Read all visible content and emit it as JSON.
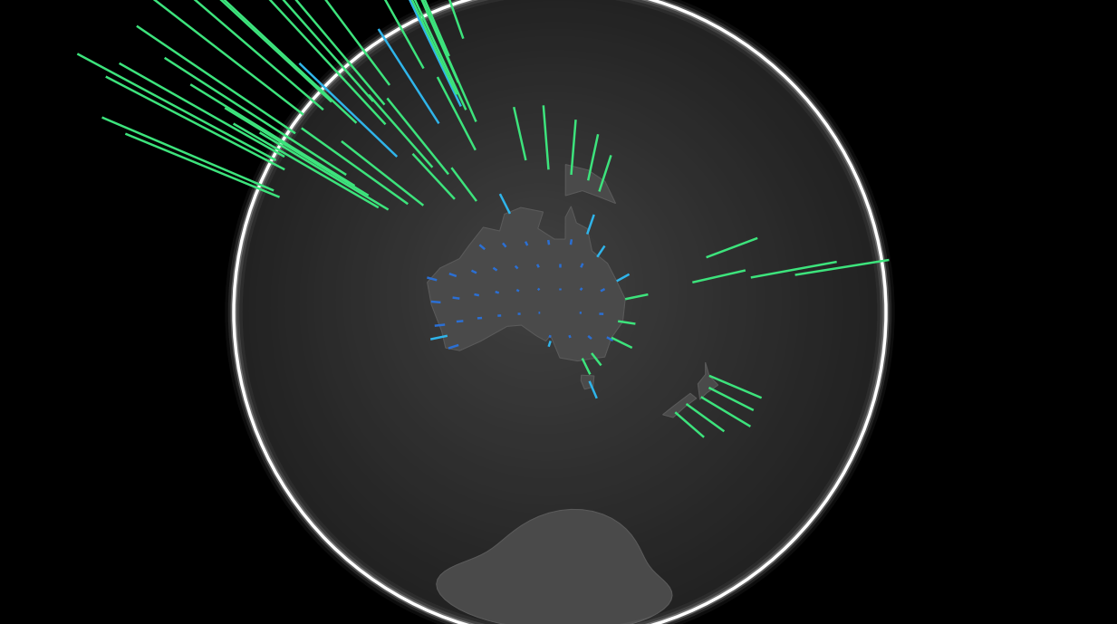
{
  "chart_data": {
    "type": "spike_globe",
    "tick_labels": false,
    "series": [
      {
        "color": "#2b6fd3",
        "lon": [
          126,
          130,
          134,
          138,
          142,
          116,
          120,
          124,
          128,
          132,
          136,
          140,
          144,
          116,
          120,
          124,
          128,
          132,
          136,
          140,
          144,
          148,
          116,
          120,
          124,
          128,
          132,
          136,
          140,
          144,
          148,
          118,
          138,
          142,
          146,
          150
        ],
        "lat": [
          -18,
          -18,
          -18,
          -18,
          -18,
          -22,
          -22,
          -22,
          -22,
          -22,
          -22,
          -22,
          -22,
          -26,
          -26,
          -26,
          -26,
          -26,
          -26,
          -26,
          -26,
          -26,
          -30,
          -30,
          -30,
          -30,
          -30,
          -30,
          -30,
          -30,
          -30,
          -34,
          -34,
          -34,
          -34,
          -34
        ],
        "values": [
          0.07,
          0.06,
          0.06,
          0.07,
          0.08,
          0.08,
          0.07,
          0.06,
          0.06,
          0.06,
          0.07,
          0.07,
          0.09,
          0.08,
          0.07,
          0.06,
          0.06,
          0.06,
          0.07,
          0.07,
          0.09,
          0.1,
          0.09,
          0.07,
          0.06,
          0.06,
          0.07,
          0.08,
          0.08,
          0.1,
          0.11,
          0.1,
          0.1,
          0.11,
          0.12,
          0.13
        ]
      },
      {
        "color": "#2fb4ea",
        "lon": [
          145,
          147,
          151,
          138,
          116,
          131,
          147,
          122,
          118,
          110
        ],
        "lat": [
          -16,
          -20,
          -24,
          -35,
          -32,
          -12,
          -42,
          11,
          8,
          3
        ],
        "values": [
          0.25,
          0.2,
          0.22,
          0.2,
          0.15,
          0.2,
          0.25,
          0.55,
          0.5,
          0.6
        ]
      },
      {
        "color": "#3de37c",
        "lon": [
          153,
          152,
          151,
          147,
          145,
          145,
          147,
          142,
          138,
          134,
          112,
          108,
          115,
          121,
          106,
          104,
          101,
          99,
          117,
          125,
          120,
          125,
          121,
          123,
          125,
          121,
          100,
          106,
          106,
          107,
          103,
          113,
          118,
          120,
          73,
          80,
          88,
          77,
          79,
          78,
          77,
          80,
          90,
          175,
          176,
          175,
          172,
          170,
          178,
          -172,
          166,
          168
        ],
        "lat": [
          -27,
          -31,
          -34,
          -37,
          -38,
          -6,
          -8,
          -5,
          -4,
          -2,
          -7,
          -7,
          -8,
          -8,
          -6,
          -3,
          0,
          3,
          -1,
          1,
          -3,
          -9,
          14,
          10,
          7,
          17,
          14,
          16,
          21,
          11,
          18,
          23,
          25,
          30,
          19,
          13,
          23,
          28,
          22,
          17,
          10,
          7,
          24,
          -37,
          -39,
          -41,
          -43,
          -45,
          -18,
          -14,
          -22,
          -17
        ],
        "values": [
          0.35,
          0.3,
          0.4,
          0.3,
          0.35,
          0.35,
          0.3,
          0.4,
          0.45,
          0.35,
          0.7,
          0.75,
          0.6,
          0.4,
          0.8,
          0.75,
          0.8,
          0.85,
          0.5,
          0.45,
          0.55,
          0.3,
          0.9,
          0.85,
          0.75,
          0.85,
          0.9,
          0.85,
          0.9,
          0.8,
          0.8,
          0.9,
          0.85,
          0.8,
          0.7,
          0.65,
          0.7,
          0.65,
          0.6,
          0.6,
          0.6,
          0.55,
          0.65,
          0.35,
          0.3,
          0.35,
          0.3,
          0.25,
          0.45,
          0.4,
          0.4,
          0.35
        ]
      }
    ]
  }
}
